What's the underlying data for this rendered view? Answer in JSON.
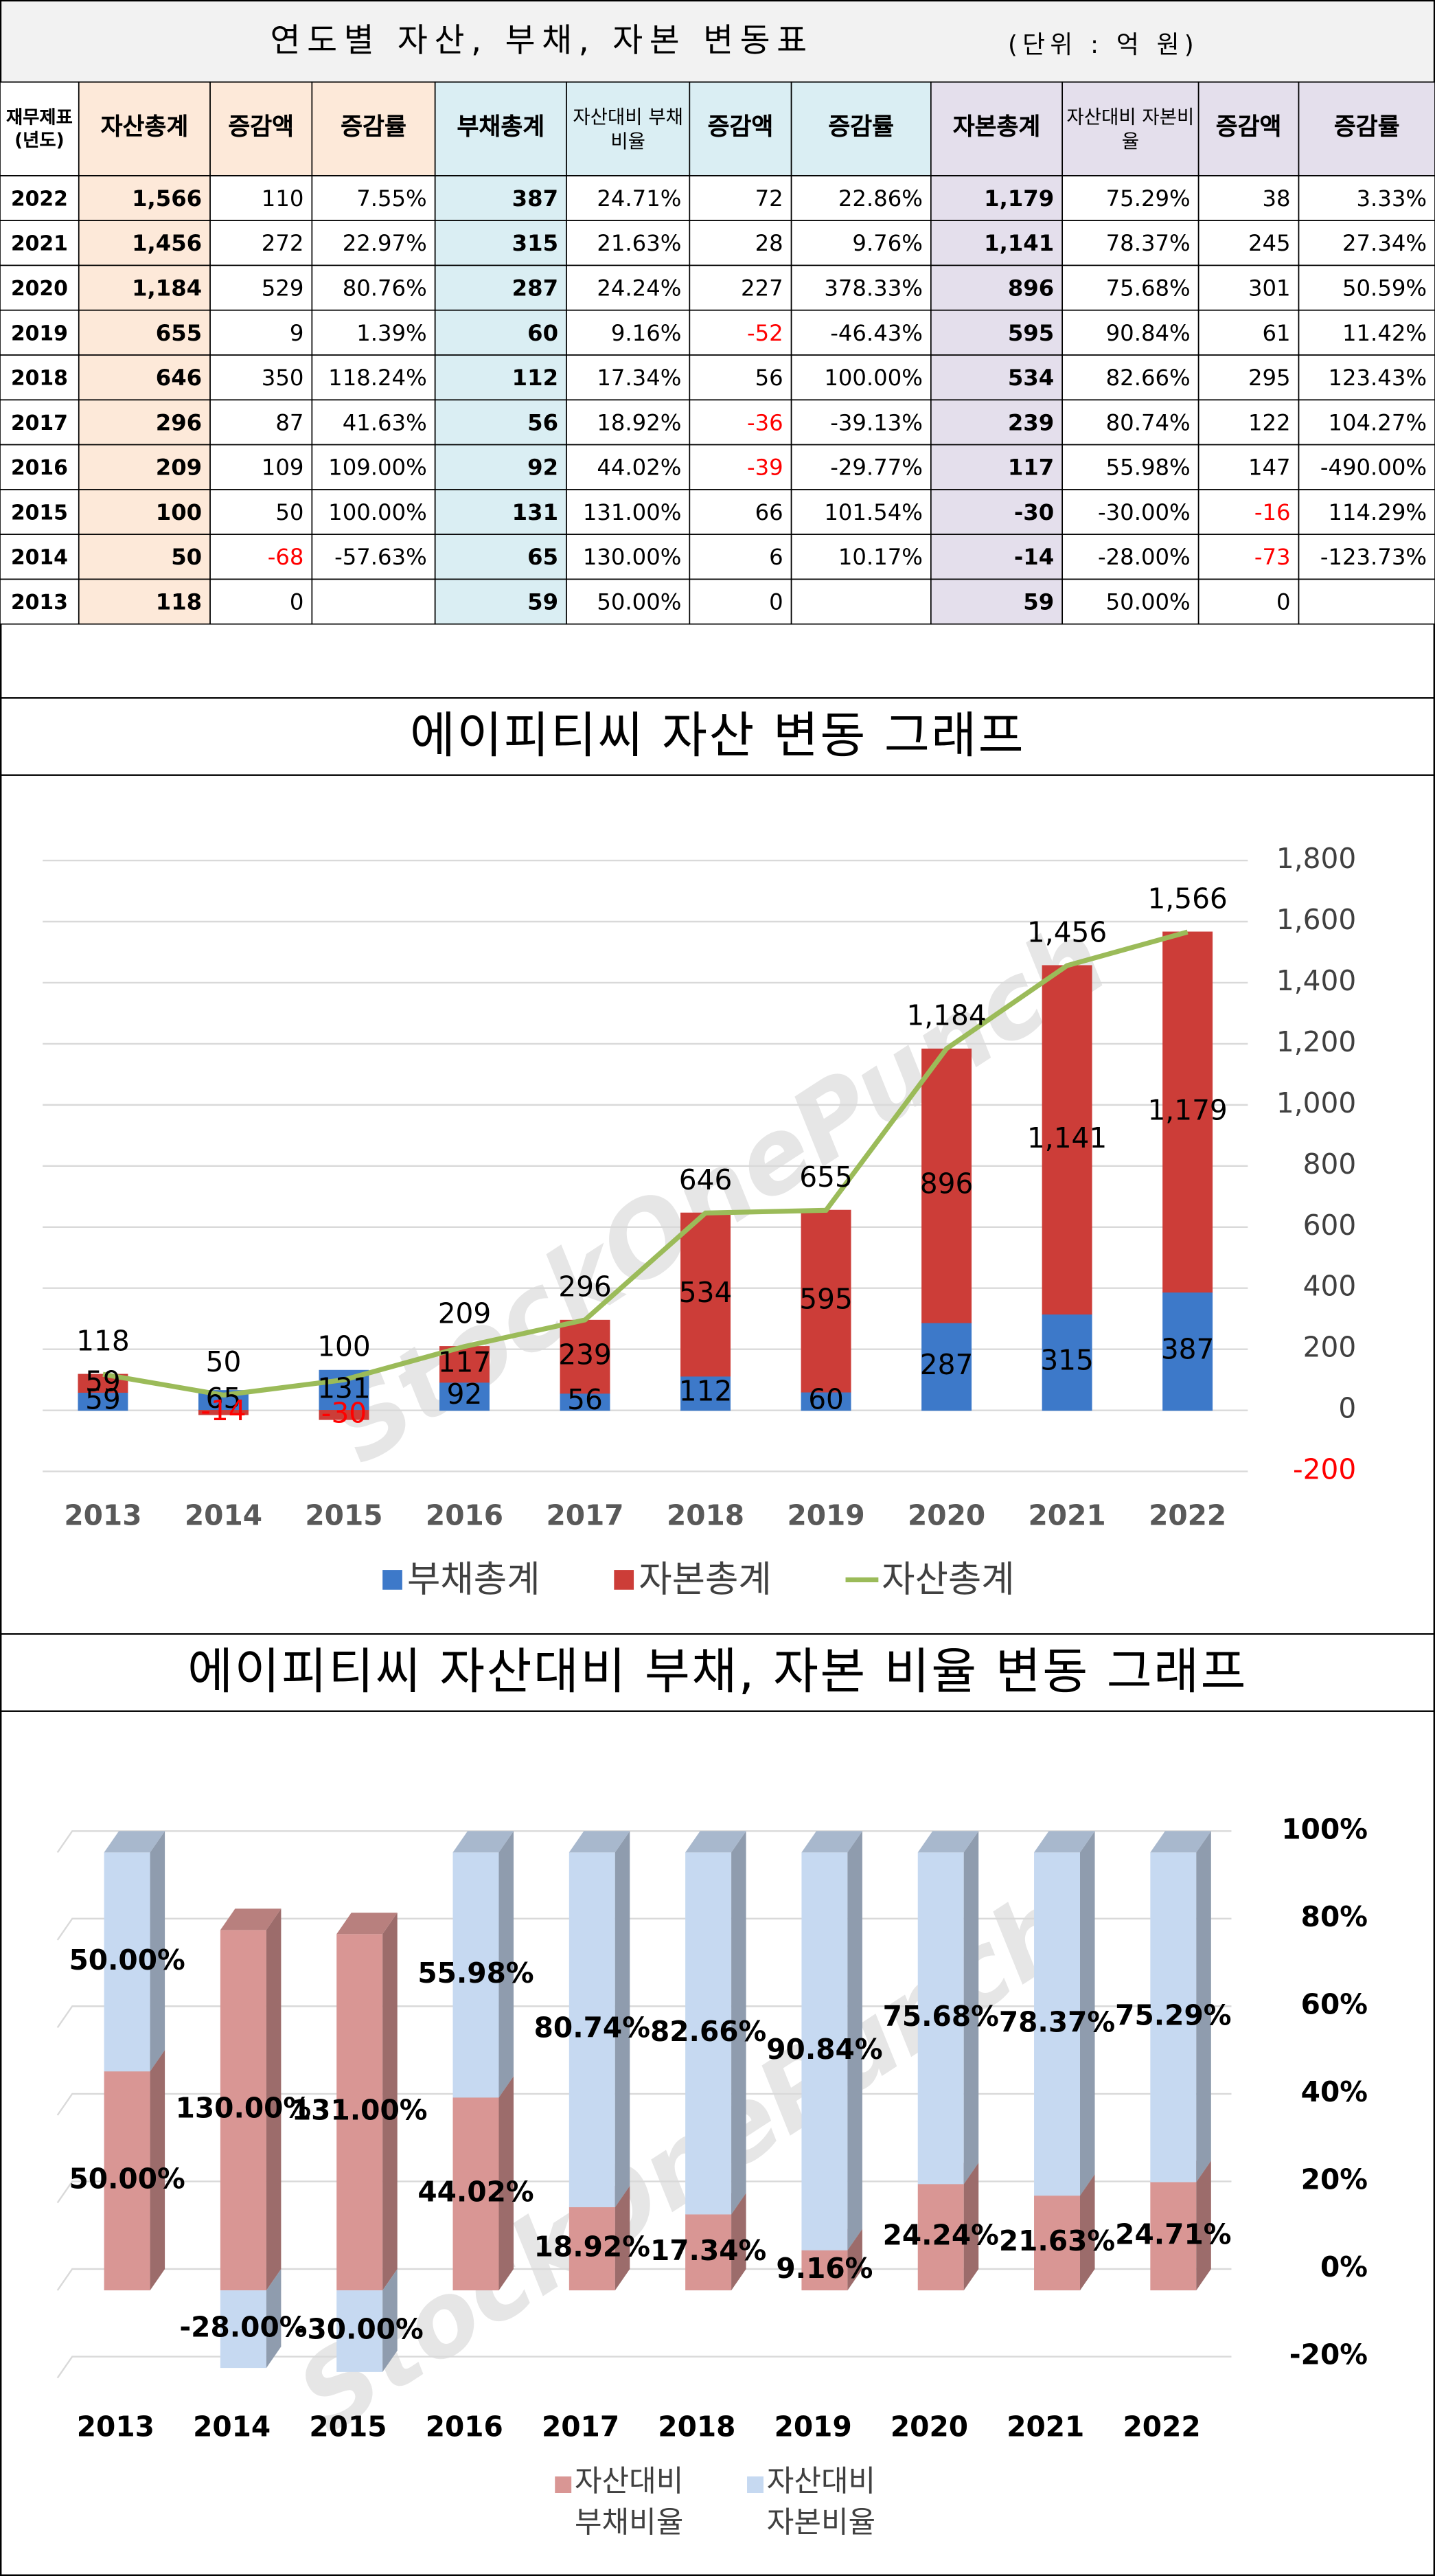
{
  "watermark": "StockOnePunch",
  "table": {
    "title": "연도별 자산, 부채, 자본 변동표",
    "unit": "(단위 : 억 원)",
    "header": [
      "재무제표 (년도)",
      "자산총계",
      "증감액",
      "증감률",
      "부채총계",
      "자산대비 부채비율",
      "증감액",
      "증감률",
      "자본총계",
      "자산대비 자본비율",
      "증감액",
      "증감률"
    ],
    "rows": [
      [
        "2022",
        "1,566",
        "110",
        "7.55%",
        "387",
        "24.71%",
        "72",
        "22.86%",
        "1,179",
        "75.29%",
        "38",
        "3.33%"
      ],
      [
        "2021",
        "1,456",
        "272",
        "22.97%",
        "315",
        "21.63%",
        "28",
        "9.76%",
        "1,141",
        "78.37%",
        "245",
        "27.34%"
      ],
      [
        "2020",
        "1,184",
        "529",
        "80.76%",
        "287",
        "24.24%",
        "227",
        "378.33%",
        "896",
        "75.68%",
        "301",
        "50.59%"
      ],
      [
        "2019",
        "655",
        "9",
        "1.39%",
        "60",
        "9.16%",
        "-52",
        "-46.43%",
        "595",
        "90.84%",
        "61",
        "11.42%"
      ],
      [
        "2018",
        "646",
        "350",
        "118.24%",
        "112",
        "17.34%",
        "56",
        "100.00%",
        "534",
        "82.66%",
        "295",
        "123.43%"
      ],
      [
        "2017",
        "296",
        "87",
        "41.63%",
        "56",
        "18.92%",
        "-36",
        "-39.13%",
        "239",
        "80.74%",
        "122",
        "104.27%"
      ],
      [
        "2016",
        "209",
        "109",
        "109.00%",
        "92",
        "44.02%",
        "-39",
        "-29.77%",
        "117",
        "55.98%",
        "147",
        "-490.00%"
      ],
      [
        "2015",
        "100",
        "50",
        "100.00%",
        "131",
        "131.00%",
        "66",
        "101.54%",
        "-30",
        "-30.00%",
        "-16",
        "114.29%"
      ],
      [
        "2014",
        "50",
        "-68",
        "-57.63%",
        "65",
        "130.00%",
        "6",
        "10.17%",
        "-14",
        "-28.00%",
        "-73",
        "-123.73%"
      ],
      [
        "2013",
        "118",
        "0",
        null,
        "59",
        "50.00%",
        "0",
        null,
        "59",
        "50.00%",
        "0",
        null
      ]
    ]
  },
  "chart_data": [
    {
      "type": "bar",
      "title": "에이피티씨 자산 변동 그래프",
      "categories": [
        "2013",
        "2014",
        "2015",
        "2016",
        "2017",
        "2018",
        "2019",
        "2020",
        "2021",
        "2022"
      ],
      "series": [
        {
          "name": "부채총계",
          "type": "bar",
          "color": "#3d79c9",
          "values": [
            59,
            65,
            131,
            92,
            56,
            112,
            60,
            287,
            315,
            387
          ]
        },
        {
          "name": "자본총계",
          "type": "bar",
          "color": "#cc3d38",
          "values": [
            59,
            -14,
            -30,
            117,
            239,
            534,
            595,
            896,
            1141,
            1179
          ],
          "value_labels": [
            "59",
            "-14",
            "-30",
            "117",
            "239",
            "534",
            "595",
            "896",
            "1,141",
            "1,179"
          ]
        },
        {
          "name": "자산총계",
          "type": "line",
          "color": "#9bbb59",
          "values": [
            118,
            50,
            100,
            209,
            296,
            646,
            655,
            1184,
            1456,
            1566
          ],
          "value_labels": [
            "118",
            "50",
            "100",
            "209",
            "296",
            "646",
            "655",
            "1,184",
            "1,456",
            "1,566"
          ]
        }
      ],
      "ylim": [
        -200,
        1800
      ],
      "yticks": [
        -200,
        0,
        200,
        400,
        600,
        800,
        {
          "value": 1000,
          "label": "1,000"
        },
        {
          "value": 1200,
          "label": "1,200"
        },
        {
          "value": 1400,
          "label": "1,400"
        },
        {
          "value": 1600,
          "label": "1,600"
        },
        {
          "value": 1800,
          "label": "1,800"
        }
      ],
      "stacked": true,
      "grid": true,
      "legend": "bottom"
    },
    {
      "type": "bar3d",
      "title": "에이피티씨 자산대비 부채, 자본 비율 변동 그래프",
      "categories": [
        "2013",
        "2014",
        "2015",
        "2016",
        "2017",
        "2018",
        "2019",
        "2020",
        "2021",
        "2022"
      ],
      "series": [
        {
          "name": "자산대비 부채비율",
          "color": "#d99694",
          "values": [
            50,
            130,
            131,
            44.02,
            18.92,
            17.34,
            9.16,
            24.24,
            21.63,
            24.71
          ],
          "value_labels": [
            "50.00%",
            "130.00%",
            "131.00%",
            "44.02%",
            "18.92%",
            "17.34%",
            "9.16%",
            "24.24%",
            "21.63%",
            "24.71%"
          ]
        },
        {
          "name": "자산대비 자본비율",
          "color": "#c6d9f1",
          "values": [
            50,
            -28,
            -30,
            55.98,
            80.74,
            82.66,
            90.84,
            75.68,
            78.37,
            75.29
          ],
          "value_labels": [
            "50.00%",
            "-28.00%",
            "-30.00%",
            "55.98%",
            "80.74%",
            "82.66%",
            "90.84%",
            "75.68%",
            "78.37%",
            "75.29%"
          ]
        }
      ],
      "ylim": [
        -20,
        100
      ],
      "yticks": [
        {
          "value": -20,
          "label": "-20%"
        },
        {
          "value": 0,
          "label": "0%"
        },
        {
          "value": 20,
          "label": "20%"
        },
        {
          "value": 40,
          "label": "40%"
        },
        {
          "value": 60,
          "label": "60%"
        },
        {
          "value": 80,
          "label": "80%"
        },
        {
          "value": 100,
          "label": "100%"
        }
      ],
      "stacked": "percent",
      "grid": true,
      "legend": "bottom"
    }
  ]
}
